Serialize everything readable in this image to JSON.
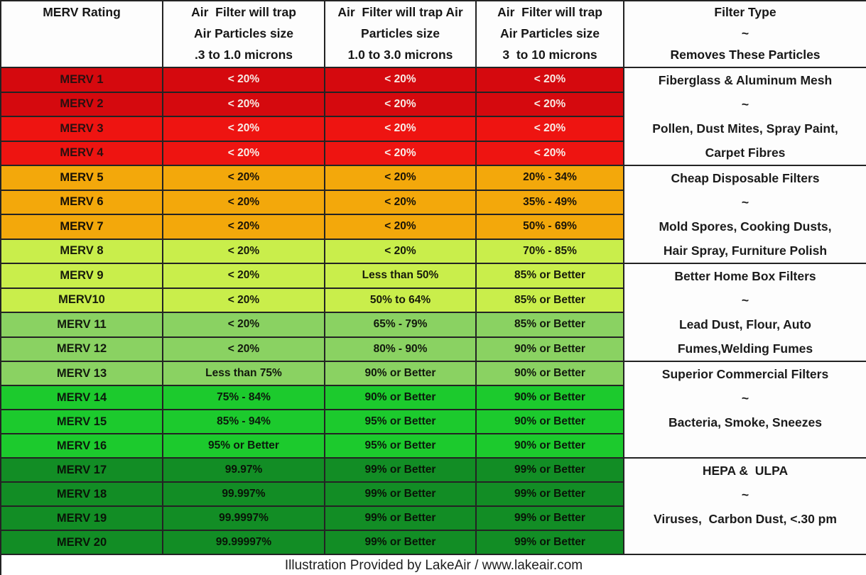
{
  "header": {
    "columns": [
      {
        "id": "merv-rating",
        "lines": [
          "MERV Rating"
        ]
      },
      {
        "id": "particles-03-10",
        "lines": [
          "Air  Filter will trap",
          "Air Particles size",
          ".3 to 1.0 microns"
        ]
      },
      {
        "id": "particles-10-30",
        "lines": [
          "Air  Filter will trap Air",
          "Particles size",
          "1.0 to 3.0 microns"
        ]
      },
      {
        "id": "particles-3-10",
        "lines": [
          "Air  Filter will trap",
          "Air Particles size",
          "3  to 10 microns"
        ]
      },
      {
        "id": "filter-type",
        "lines": [
          "Filter Type",
          "~",
          "Removes These Particles"
        ]
      }
    ]
  },
  "rows": [
    {
      "rating": "MERV  1",
      "trap_small": "< 20%",
      "trap_mid": "< 20%",
      "trap_large": "< 20%",
      "band": "red_dark"
    },
    {
      "rating": "MERV 2",
      "trap_small": "< 20%",
      "trap_mid": "< 20%",
      "trap_large": "< 20%",
      "band": "red_dark"
    },
    {
      "rating": "MERV 3",
      "trap_small": "< 20%",
      "trap_mid": "< 20%",
      "trap_large": "< 20%",
      "band": "red_bright"
    },
    {
      "rating": "MERV 4",
      "trap_small": "< 20%",
      "trap_mid": "< 20%",
      "trap_large": "< 20%",
      "band": "red_bright"
    },
    {
      "rating": "MERV 5",
      "trap_small": "< 20%",
      "trap_mid": "< 20%",
      "trap_large": "20% - 34%",
      "band": "orange"
    },
    {
      "rating": "MERV 6",
      "trap_small": "< 20%",
      "trap_mid": "< 20%",
      "trap_large": "35% - 49%",
      "band": "orange"
    },
    {
      "rating": "MERV 7",
      "trap_small": "< 20%",
      "trap_mid": "< 20%",
      "trap_large": "50% - 69%",
      "band": "orange"
    },
    {
      "rating": "MERV 8",
      "trap_small": "< 20%",
      "trap_mid": "< 20%",
      "trap_large": "70% - 85%",
      "band": "yellow_green"
    },
    {
      "rating": "MERV 9",
      "trap_small": "< 20%",
      "trap_mid": "Less than 50%",
      "trap_large": "85% or Better",
      "band": "yellow_green"
    },
    {
      "rating": "MERV10",
      "trap_small": "< 20%",
      "trap_mid": "50% to 64%",
      "trap_large": "85% or Better",
      "band": "yellow_green"
    },
    {
      "rating": "MERV 11",
      "trap_small": "< 20%",
      "trap_mid": "65% - 79%",
      "trap_large": "85% or Better",
      "band": "green_med"
    },
    {
      "rating": "MERV 12",
      "trap_small": "< 20%",
      "trap_mid": "80% - 90%",
      "trap_large": "90% or Better",
      "band": "green_med"
    },
    {
      "rating": "MERV 13",
      "trap_small": "Less than 75%",
      "trap_mid": "90% or Better",
      "trap_large": "90% or Better",
      "band": "green_med"
    },
    {
      "rating": "MERV 14",
      "trap_small": "75% - 84%",
      "trap_mid": "90% or Better",
      "trap_large": "90% or Better",
      "band": "green_bright"
    },
    {
      "rating": "MERV 15",
      "trap_small": "85% - 94%",
      "trap_mid": "95% or Better",
      "trap_large": "90% or Better",
      "band": "green_bright"
    },
    {
      "rating": "MERV 16",
      "trap_small": "95% or Better",
      "trap_mid": "95% or Better",
      "trap_large": "90% or Better",
      "band": "green_bright"
    },
    {
      "rating": "MERV 17",
      "trap_small": "99.97%",
      "trap_mid": "99% or Better",
      "trap_large": "99% or Better",
      "band": "green_dark"
    },
    {
      "rating": "MERV 18",
      "trap_small": "99.997%",
      "trap_mid": "99% or Better",
      "trap_large": "99% or Better",
      "band": "green_dark"
    },
    {
      "rating": "MERV 19",
      "trap_small": "99.9997%",
      "trap_mid": "99% or Better",
      "trap_large": "99% or Better",
      "band": "green_dark"
    },
    {
      "rating": "MERV 20",
      "trap_small": "99.99997%",
      "trap_mid": "99% or Better",
      "trap_large": "99% or Better",
      "band": "green_dark"
    }
  ],
  "filter_groups": [
    {
      "rows": "MERV 1-4",
      "lines": [
        "Fiberglass & Aluminum Mesh",
        "~",
        "Pollen, Dust Mites, Spray Paint,",
        "Carpet Fibres"
      ]
    },
    {
      "rows": "MERV 5-8",
      "lines": [
        "Cheap Disposable Filters",
        "~",
        "Mold Spores, Cooking Dusts,",
        "Hair Spray, Furniture Polish"
      ]
    },
    {
      "rows": "MERV 9-12",
      "lines": [
        "Better Home Box Filters",
        "~",
        "Lead Dust, Flour, Auto",
        "Fumes,Welding Fumes"
      ]
    },
    {
      "rows": "MERV 13-16",
      "lines": [
        "Superior Commercial Filters",
        "~",
        "Bacteria, Smoke, Sneezes"
      ]
    },
    {
      "rows": "MERV 17-20",
      "lines": [
        "HEPA &  ULPA",
        "~",
        "Viruses,  Carbon Dust, <.30 pm"
      ]
    }
  ],
  "footer": {
    "text": "Illustration Provided by LakeAir / www.lakeair.com"
  },
  "colors": {
    "red_dark": {
      "bg": "#d5090e",
      "label": "#2a1010",
      "value": "#f7e9e3"
    },
    "red_bright": {
      "bg": "#ee1411",
      "label": "#2a1010",
      "value": "#f8ece7"
    },
    "orange": {
      "bg": "#f3a80b",
      "label": "#171106",
      "value": "#1a1408"
    },
    "yellow_green": {
      "bg": "#c9ee4b",
      "label": "#171a0b",
      "value": "#171a0b"
    },
    "green_med": {
      "bg": "#8ad262",
      "label": "#12190d",
      "value": "#12190d"
    },
    "green_bright": {
      "bg": "#1cca2d",
      "label": "#0b1a0c",
      "value": "#0b1a0c"
    },
    "green_dark": {
      "bg": "#128d25",
      "label": "#091407",
      "value": "#091407"
    },
    "grid_line": "#232323",
    "header_bg": "#fdfdfd"
  },
  "chart_data": {
    "type": "table",
    "title": "MERV Rating air filter efficiency table",
    "columns": [
      "MERV Rating",
      "Air Filter will trap Air Particles size .3 to 1.0 microns",
      "Air Filter will trap Air Particles size 1.0 to 3.0 microns",
      "Air Filter will trap Air Particles size 3 to 10 microns",
      "Filter Type ~ Removes These Particles"
    ],
    "rows": [
      [
        "MERV 1",
        "< 20%",
        "< 20%",
        "< 20%",
        "Fiberglass & Aluminum Mesh ~ Pollen, Dust Mites, Spray Paint, Carpet Fibres"
      ],
      [
        "MERV 2",
        "< 20%",
        "< 20%",
        "< 20%",
        ""
      ],
      [
        "MERV 3",
        "< 20%",
        "< 20%",
        "< 20%",
        ""
      ],
      [
        "MERV 4",
        "< 20%",
        "< 20%",
        "< 20%",
        ""
      ],
      [
        "MERV 5",
        "< 20%",
        "< 20%",
        "20% - 34%",
        "Cheap Disposable Filters ~ Mold Spores, Cooking Dusts, Hair Spray, Furniture Polish"
      ],
      [
        "MERV 6",
        "< 20%",
        "< 20%",
        "35% - 49%",
        ""
      ],
      [
        "MERV 7",
        "< 20%",
        "< 20%",
        "50% - 69%",
        ""
      ],
      [
        "MERV 8",
        "< 20%",
        "< 20%",
        "70% - 85%",
        ""
      ],
      [
        "MERV 9",
        "< 20%",
        "Less than 50%",
        "85% or Better",
        "Better Home Box Filters ~ Lead Dust, Flour, Auto Fumes,Welding Fumes"
      ],
      [
        "MERV10",
        "< 20%",
        "50% to 64%",
        "85% or Better",
        ""
      ],
      [
        "MERV 11",
        "< 20%",
        "65% - 79%",
        "85% or Better",
        ""
      ],
      [
        "MERV 12",
        "< 20%",
        "80% - 90%",
        "90% or Better",
        ""
      ],
      [
        "MERV 13",
        "Less than 75%",
        "90% or Better",
        "90% or Better",
        "Superior Commercial Filters ~ Bacteria, Smoke, Sneezes"
      ],
      [
        "MERV 14",
        "75% - 84%",
        "90% or Better",
        "90% or Better",
        ""
      ],
      [
        "MERV 15",
        "85% - 94%",
        "95% or Better",
        "90% or Better",
        ""
      ],
      [
        "MERV 16",
        "95% or Better",
        "95% or Better",
        "90% or Better",
        ""
      ],
      [
        "MERV 17",
        "99.97%",
        "99% or Better",
        "99% or Better",
        "HEPA & ULPA ~ Viruses, Carbon Dust, <.30 pm"
      ],
      [
        "MERV 18",
        "99.997%",
        "99% or Better",
        "99% or Better",
        ""
      ],
      [
        "MERV 19",
        "99.9997%",
        "99% or Better",
        "99% or Better",
        ""
      ],
      [
        "MERV 20",
        "99.99997%",
        "99% or Better",
        "99% or Better",
        ""
      ]
    ],
    "footnote": "Illustration Provided by LakeAir / www.lakeair.com",
    "layout_hints": {
      "grid": true,
      "row_color_bands": "red to dark green by MERV group"
    }
  }
}
